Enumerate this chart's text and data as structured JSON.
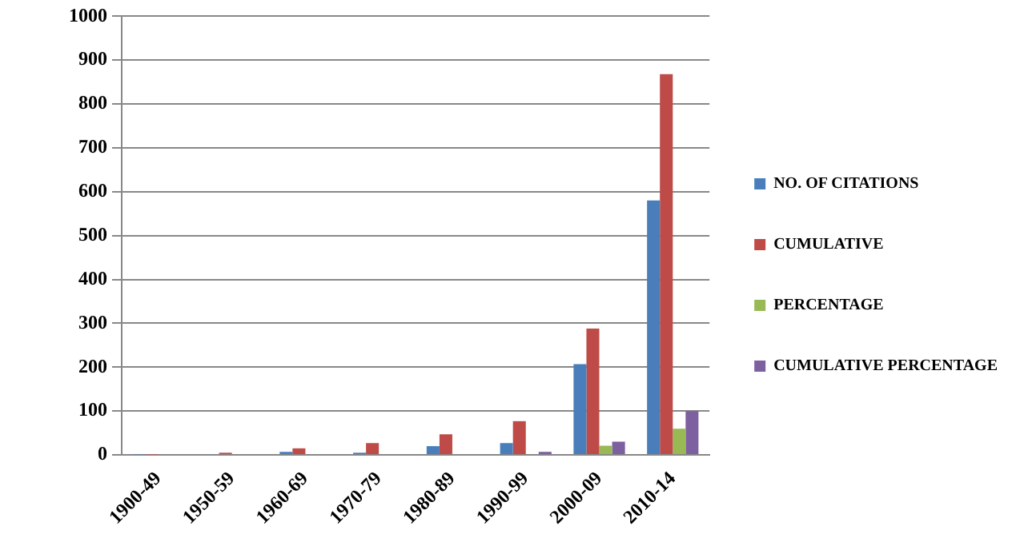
{
  "chart_data": {
    "type": "bar",
    "categories": [
      "1900-49",
      "1950-59",
      "1960-69",
      "1970-79",
      "1980-89",
      "1990-99",
      "2000-09",
      "2010-14"
    ],
    "series": [
      {
        "name": "NO. OF CITATIONS",
        "color": "#4a7ebb",
        "values": [
          1,
          2,
          7,
          5,
          20,
          27,
          207,
          580
        ]
      },
      {
        "name": "CUMULATIVE",
        "color": "#be4b48",
        "values": [
          1,
          5,
          15,
          27,
          47,
          77,
          288,
          868
        ]
      },
      {
        "name": "PERCENTAGE",
        "color": "#98b954",
        "values": [
          0,
          0,
          0,
          0,
          0,
          0,
          21,
          60
        ]
      },
      {
        "name": "CUMULATIVE PERCENTAGE",
        "color": "#7d60a0",
        "values": [
          0,
          0,
          0,
          0,
          0,
          7,
          30,
          100
        ]
      }
    ],
    "ylim": [
      0,
      1000
    ],
    "yticks": [
      0,
      100,
      200,
      300,
      400,
      500,
      600,
      700,
      800,
      900,
      1000
    ],
    "grid": "y",
    "legend": "right"
  }
}
